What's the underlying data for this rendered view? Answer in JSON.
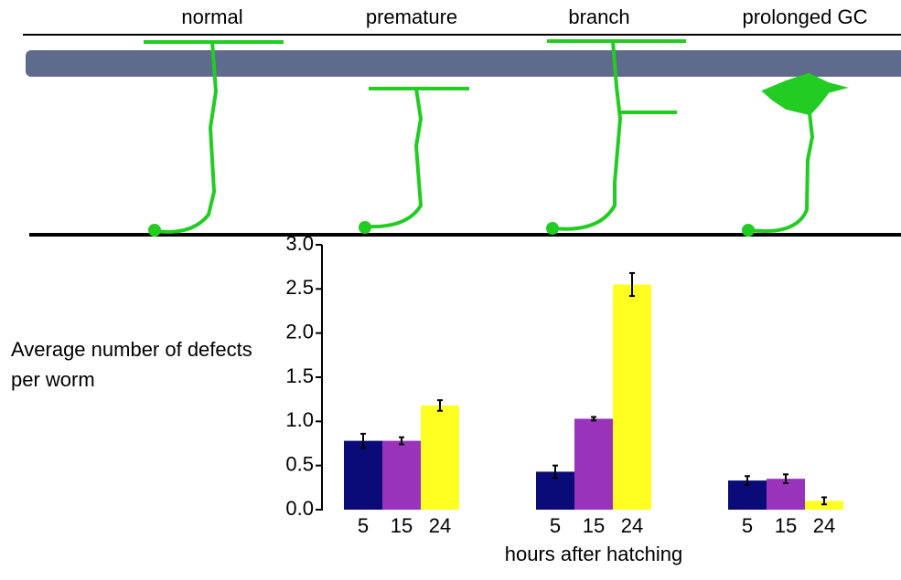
{
  "diagram": {
    "labels": [
      "normal",
      "premature",
      "branch",
      "prolonged GC"
    ]
  },
  "chart_data": {
    "type": "bar",
    "ylabel": "Average number of defects per worm",
    "xlabel": "hours after hatching",
    "categories": [
      null,
      null,
      null
    ],
    "series": [
      {
        "name": "5",
        "color": "#0a0a78",
        "values": [
          0.78,
          0.43,
          0.33
        ],
        "errors": [
          0.08,
          0.07,
          0.05
        ]
      },
      {
        "name": "15",
        "color": "#9933bb",
        "values": [
          0.78,
          1.03,
          0.35
        ],
        "errors": [
          0.04,
          0.02,
          0.05
        ]
      },
      {
        "name": "24",
        "color": "#ffff22",
        "values": [
          1.18,
          2.55,
          0.1
        ],
        "errors": [
          0.06,
          0.13,
          0.04
        ]
      }
    ],
    "ylim": [
      0,
      3
    ],
    "yticks": [
      {
        "value": 0,
        "label": "0.0"
      },
      {
        "value": 0.5,
        "label": "0.5"
      },
      {
        "value": 1,
        "label": "1.0"
      },
      {
        "value": 1.5,
        "label": "1.5"
      },
      {
        "value": 2,
        "label": "2.0"
      },
      {
        "value": 2.5,
        "label": "2.5"
      },
      {
        "value": 3,
        "label": "3.0"
      }
    ]
  }
}
